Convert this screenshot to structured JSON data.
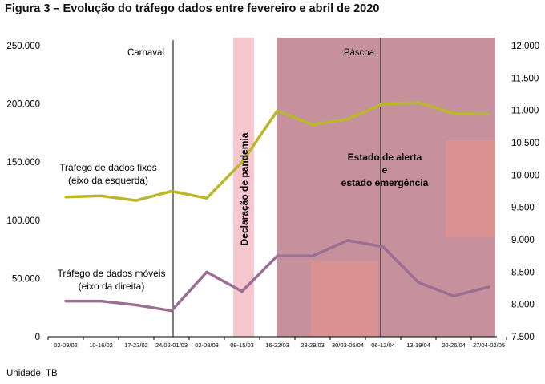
{
  "title": "Figura 3 – Evolução do tráfego dados entre fevereiro e abril de 2020",
  "unit_note": "Unidade: TB",
  "colors": {
    "fixed_line": "#b8b82a",
    "mobile_line": "#9a6f92",
    "emergency_band": "#c6909c",
    "pandemic_band": "#f7c7cf",
    "highlight_box": "#dc9290"
  },
  "annotations": {
    "carnaval": "Carnaval",
    "pascoa": "Páscoa",
    "pandemia": "Declaração de pandemia",
    "estado": [
      "Estado de alerta",
      "e",
      "estado emergência"
    ],
    "fixos": [
      "Tráfego de dados fixos",
      "(eixo da esquerda)"
    ],
    "moveis": [
      "Tráfego de dados móveis",
      "(eixo da direita)"
    ]
  },
  "chart_data": {
    "type": "line",
    "title": "Figura 3 – Evolução do tráfego dados entre fevereiro e abril de 2020",
    "categories": [
      "02-09/02",
      "10-16/02",
      "17-23/02",
      "24/02-01/03",
      "02-08/03",
      "09-15/03",
      "16-22/03",
      "23-29/03",
      "30/03-05/04",
      "06-12/04",
      "13-19/04",
      "20-26/04",
      "27/04-02/05"
    ],
    "series": [
      {
        "name": "Tráfego de dados fixos (eixo da esquerda)",
        "axis": "left",
        "values": [
          120000,
          121000,
          117000,
          125000,
          119000,
          150000,
          194000,
          182000,
          187000,
          200000,
          201000,
          192000,
          191000
        ]
      },
      {
        "name": "Tráfego de dados móveis (eixo da direita)",
        "axis": "right",
        "values": [
          8050,
          8050,
          7990,
          7900,
          8500,
          8200,
          8750,
          8750,
          8990,
          8890,
          8340,
          8130,
          8270
        ]
      }
    ],
    "y_left": {
      "lim": [
        0,
        250000
      ],
      "ticks": [
        "0",
        "50.000",
        "100.000",
        "150.000",
        "200.000",
        "250.000"
      ]
    },
    "y_right": {
      "lim": [
        7500,
        12000
      ],
      "ticks": [
        "7.500",
        "8.000",
        "8.500",
        "9.000",
        "9.500",
        "10.000",
        "10.500",
        "11.000",
        "11.500",
        "12.000"
      ]
    },
    "grid": false,
    "legend": "none"
  }
}
